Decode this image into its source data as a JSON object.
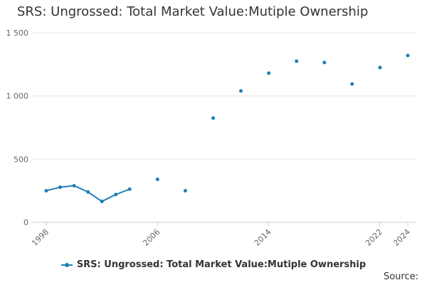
{
  "chart_data": {
    "type": "line",
    "title": "SRS: Ungrossed: Total Market Value:Mutiple Ownership",
    "xlabel": "",
    "ylabel": "",
    "xlim": [
      1998,
      2024
    ],
    "ylim": [
      0,
      1500
    ],
    "x_ticks": [
      "1998",
      "2006",
      "2014",
      "2022",
      "2024"
    ],
    "y_ticks": [
      "0",
      "500",
      "1 000",
      "1 500"
    ],
    "grid": true,
    "legend_position": "bottom",
    "series": [
      {
        "name": "SRS: Ungrossed: Total Market Value:Mutiple Ownership",
        "color": "#1f7fb8",
        "points": [
          {
            "x": 1998,
            "y": 250
          },
          {
            "x": 1999,
            "y": 278
          },
          {
            "x": 2000,
            "y": 290
          },
          {
            "x": 2001,
            "y": 240
          },
          {
            "x": 2002,
            "y": 165
          },
          {
            "x": 2003,
            "y": 220
          },
          {
            "x": 2004,
            "y": 262
          },
          {
            "x": 2006,
            "y": 340
          },
          {
            "x": 2008,
            "y": 250
          },
          {
            "x": 2010,
            "y": 825
          },
          {
            "x": 2012,
            "y": 1040
          },
          {
            "x": 2014,
            "y": 1180
          },
          {
            "x": 2016,
            "y": 1275
          },
          {
            "x": 2018,
            "y": 1265
          },
          {
            "x": 2020,
            "y": 1095
          },
          {
            "x": 2022,
            "y": 1225
          },
          {
            "x": 2024,
            "y": 1320
          }
        ]
      }
    ]
  },
  "legend": {
    "label": "SRS: Ungrossed: Total Market Value:Mutiple Ownership"
  },
  "source": {
    "label": "Source:"
  }
}
